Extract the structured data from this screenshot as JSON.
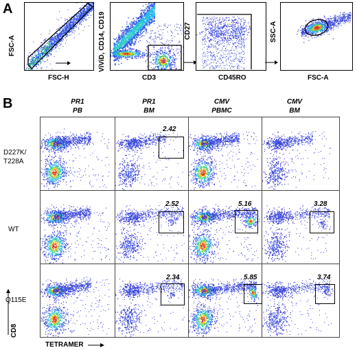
{
  "panel_a": {
    "letter": "A",
    "plots": [
      {
        "xlabel": "FSC-H",
        "ylabel": "FSC-A"
      },
      {
        "xlabel": "CD3",
        "ylabel": "ViViD, CD14, CD19"
      },
      {
        "xlabel": "CD45RO",
        "ylabel": "CD27"
      },
      {
        "xlabel": "FSC-A",
        "ylabel": "SSC-A"
      }
    ]
  },
  "panel_b": {
    "letter": "B",
    "columns": [
      {
        "line1": "PR1",
        "line2": "PB"
      },
      {
        "line1": "PR1",
        "line2": "BM"
      },
      {
        "line1": "CMV",
        "line2": "PBMC"
      },
      {
        "line1": "CMV",
        "line2": "BM"
      }
    ],
    "rows": [
      {
        "label_line1": "D227K/",
        "label_line2": "T228A",
        "values": [
          "",
          "2.42",
          "",
          ""
        ]
      },
      {
        "label_line1": "WT",
        "label_line2": "",
        "values": [
          "",
          "2.52",
          "5.16",
          "3.28"
        ]
      },
      {
        "label_line1": "Q115E",
        "label_line2": "",
        "values": [
          "",
          "2.34",
          "5.85",
          "3.74"
        ]
      }
    ],
    "y_axis_label": "CD8",
    "x_axis_label": "TETRAMER"
  }
}
